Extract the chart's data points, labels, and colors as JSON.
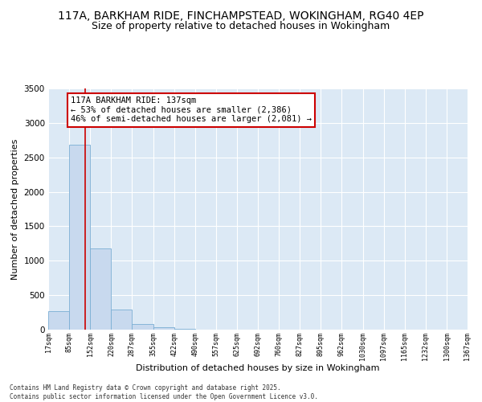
{
  "title_line1": "117A, BARKHAM RIDE, FINCHAMPSTEAD, WOKINGHAM, RG40 4EP",
  "title_line2": "Size of property relative to detached houses in Wokingham",
  "xlabel": "Distribution of detached houses by size in Wokingham",
  "ylabel": "Number of detached properties",
  "bin_edges": [
    17,
    85,
    152,
    220,
    287,
    355,
    422,
    490,
    557,
    625,
    692,
    760,
    827,
    895,
    962,
    1030,
    1097,
    1165,
    1232,
    1300,
    1367
  ],
  "bar_heights": [
    270,
    2680,
    1180,
    295,
    85,
    35,
    15,
    3,
    1,
    0,
    0,
    0,
    0,
    0,
    0,
    0,
    0,
    0,
    0,
    0
  ],
  "bar_color": "#c8d9ee",
  "bar_edgecolor": "#7aaed4",
  "vline_x": 137,
  "vline_color": "#cc0000",
  "ylim": [
    0,
    3500
  ],
  "yticks": [
    0,
    500,
    1000,
    1500,
    2000,
    2500,
    3000,
    3500
  ],
  "annotation_text": "117A BARKHAM RIDE: 137sqm\n← 53% of detached houses are smaller (2,386)\n46% of semi-detached houses are larger (2,081) →",
  "footer_line1": "Contains HM Land Registry data © Crown copyright and database right 2025.",
  "footer_line2": "Contains public sector information licensed under the Open Government Licence v3.0.",
  "bg_color": "#dce9f5",
  "fig_bg_color": "#ffffff",
  "title_fontsize": 10,
  "subtitle_fontsize": 9,
  "grid_color": "#ffffff"
}
